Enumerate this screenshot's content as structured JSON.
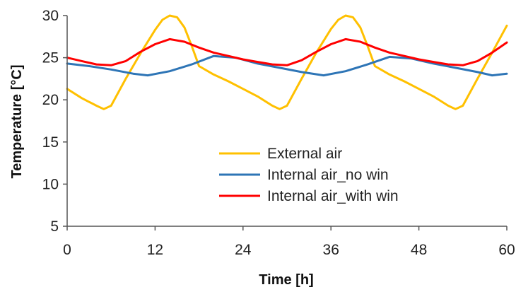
{
  "chart_data": {
    "type": "line",
    "xlabel": "Time [h]",
    "ylabel": "Temperature [°C]",
    "xlim": [
      0,
      60
    ],
    "ylim": [
      5,
      30
    ],
    "x_ticks": [
      0,
      12,
      24,
      36,
      48,
      60
    ],
    "y_ticks": [
      5,
      10,
      15,
      20,
      25,
      30
    ],
    "grid": false,
    "legend_position": "bottom-right",
    "series": [
      {
        "name": "External air",
        "color": "#FFC000",
        "x": [
          0,
          2,
          4,
          5,
          6,
          8,
          10,
          12,
          13,
          14,
          15,
          16,
          17,
          18,
          20,
          22,
          24,
          26,
          28,
          29,
          30,
          32,
          34,
          36,
          37,
          38,
          39,
          40,
          41,
          42,
          44,
          46,
          48,
          50,
          52,
          53,
          54,
          56,
          58,
          60
        ],
        "values": [
          21.3,
          20.2,
          19.3,
          18.9,
          19.3,
          22.5,
          25.5,
          28.3,
          29.5,
          30.0,
          29.8,
          28.6,
          26.4,
          24.0,
          23.0,
          22.2,
          21.3,
          20.4,
          19.3,
          18.9,
          19.3,
          22.5,
          25.6,
          28.4,
          29.5,
          30.0,
          29.8,
          28.6,
          26.4,
          24.0,
          23.0,
          22.2,
          21.3,
          20.4,
          19.3,
          18.9,
          19.3,
          22.5,
          25.6,
          28.8
        ]
      },
      {
        "name": "Internal air_no win",
        "color": "#2E75B6",
        "x": [
          0,
          3,
          6,
          9,
          11,
          14,
          17,
          20,
          23,
          26,
          29,
          32,
          35,
          38,
          41,
          44,
          47,
          50,
          53,
          56,
          58,
          60
        ],
        "values": [
          24.3,
          24.0,
          23.6,
          23.1,
          22.9,
          23.4,
          24.2,
          25.2,
          25.0,
          24.3,
          23.8,
          23.3,
          22.9,
          23.4,
          24.2,
          25.1,
          24.9,
          24.3,
          23.8,
          23.3,
          22.9,
          23.1
        ]
      },
      {
        "name": "Internal air_with win",
        "color": "#FF0000",
        "x": [
          0,
          2,
          4,
          6,
          8,
          10,
          12,
          14,
          16,
          18,
          20,
          22,
          24,
          26,
          28,
          30,
          32,
          34,
          36,
          38,
          40,
          42,
          44,
          46,
          48,
          50,
          52,
          54,
          56,
          58,
          60
        ],
        "values": [
          25.0,
          24.6,
          24.2,
          24.1,
          24.6,
          25.7,
          26.6,
          27.2,
          26.9,
          26.2,
          25.6,
          25.2,
          24.8,
          24.5,
          24.2,
          24.1,
          24.7,
          25.7,
          26.6,
          27.2,
          26.9,
          26.2,
          25.6,
          25.2,
          24.8,
          24.5,
          24.2,
          24.1,
          24.6,
          25.6,
          26.8
        ]
      }
    ]
  }
}
